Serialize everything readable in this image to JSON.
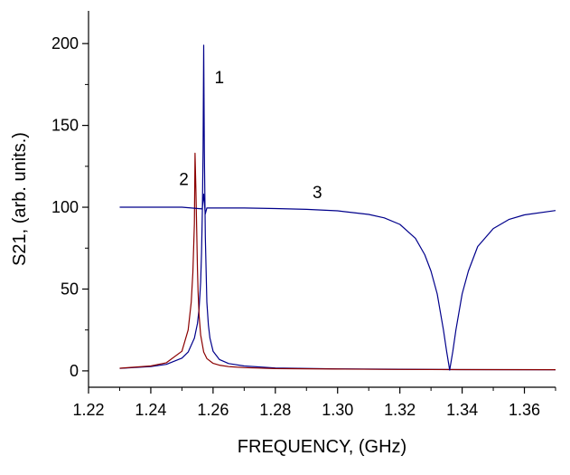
{
  "chart_data": {
    "type": "line",
    "title": "",
    "xlabel": "FREQUENCY, (GHz)",
    "ylabel": "S21, (arb. units.)",
    "xlim": [
      1.22,
      1.37
    ],
    "ylim": [
      -10,
      220
    ],
    "x_ticks": [
      1.22,
      1.24,
      1.26,
      1.28,
      1.3,
      1.32,
      1.34,
      1.36
    ],
    "x_tick_labels": [
      "1.22",
      "1.24",
      "1.26",
      "1.28",
      "1.30",
      "1.32",
      "1.34",
      "1.36"
    ],
    "y_ticks": [
      0,
      50,
      100,
      150,
      200
    ],
    "y_tick_labels": [
      "0",
      "50",
      "100",
      "150",
      "200"
    ],
    "grid": false,
    "legend": "none",
    "series": [
      {
        "label": "1",
        "color": "#00008b",
        "x": [
          1.23,
          1.24,
          1.245,
          1.25,
          1.252,
          1.254,
          1.255,
          1.2555,
          1.256,
          1.2563,
          1.2566,
          1.2568,
          1.257,
          1.2572,
          1.2575,
          1.258,
          1.2585,
          1.259,
          1.26,
          1.262,
          1.265,
          1.27,
          1.28,
          1.3,
          1.32,
          1.34,
          1.37
        ],
        "y": [
          1.5,
          2.6,
          4.0,
          7.8,
          11.5,
          20,
          29,
          38,
          54,
          72,
          100,
          135,
          199,
          135,
          82,
          42,
          28,
          20,
          12,
          7,
          4.5,
          3.0,
          1.8,
          1.2,
          1.0,
          0.8,
          0.7
        ]
      },
      {
        "label": "2",
        "color": "#8b0000",
        "x": [
          1.23,
          1.24,
          1.245,
          1.25,
          1.252,
          1.253,
          1.2535,
          1.254,
          1.2542,
          1.2545,
          1.2548,
          1.255,
          1.2552,
          1.2555,
          1.256,
          1.257,
          1.258,
          1.26,
          1.262,
          1.265,
          1.27,
          1.28,
          1.3,
          1.32,
          1.34,
          1.37
        ],
        "y": [
          1.6,
          3.0,
          5.0,
          12,
          25,
          42,
          60,
          90,
          133,
          110,
          82,
          62,
          48,
          34,
          22,
          11.5,
          7.5,
          4.6,
          3.5,
          2.6,
          2.0,
          1.4,
          1.1,
          0.9,
          0.8,
          0.7
        ]
      },
      {
        "label": "3",
        "color": "#00008b",
        "x": [
          1.23,
          1.25,
          1.2565,
          1.257,
          1.2575,
          1.258,
          1.27,
          1.28,
          1.29,
          1.3,
          1.31,
          1.315,
          1.32,
          1.325,
          1.328,
          1.33,
          1.332,
          1.334,
          1.335,
          1.336,
          1.337,
          1.338,
          1.34,
          1.342,
          1.345,
          1.35,
          1.355,
          1.36,
          1.37
        ],
        "y": [
          100,
          100,
          99,
          108,
          96,
          99.5,
          99.5,
          99.2,
          98.7,
          97.8,
          95.6,
          93.5,
          89.5,
          81,
          71,
          61,
          47,
          25,
          12,
          0.5,
          12,
          25,
          47,
          61,
          76,
          87,
          92.5,
          95.3,
          98
        ]
      }
    ]
  }
}
